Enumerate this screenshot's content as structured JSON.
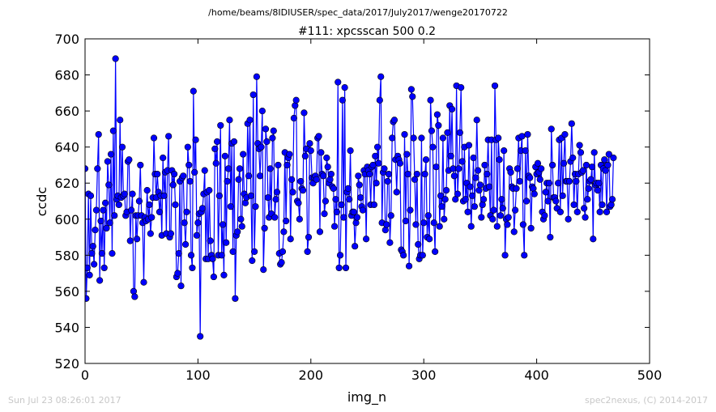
{
  "page": {
    "supertitle": "/home/beams/8IDIUSER/spec_data/2017/July2017/wenge20170722",
    "footer_left": "Sun Jul 23 08:26:01 2017",
    "footer_right": "spec2nexus, (C) 2014-2017"
  },
  "colors": {
    "series": "#0000ff",
    "marker_edge": "#000000",
    "axes": "#000000",
    "footer_text": "#c8c8c8"
  },
  "chart_data": {
    "type": "line",
    "title": "#111: xpcsscan 500 0.2",
    "xlabel": "img_n",
    "ylabel": "ccdc",
    "xlim": [
      0,
      500
    ],
    "ylim": [
      520,
      700
    ],
    "xticks": [
      0,
      100,
      200,
      300,
      400,
      500
    ],
    "yticks": [
      520,
      540,
      560,
      580,
      600,
      620,
      640,
      660,
      680,
      700
    ],
    "grid": false,
    "legend": "none",
    "marker": "circle",
    "series": [
      {
        "values": [
          628,
          556,
          573,
          614,
          569,
          613,
          581,
          585,
          575,
          594,
          605,
          628,
          647,
          566,
          599,
          581,
          605,
          573,
          609,
          595,
          632,
          619,
          598,
          636,
          581,
          649,
          602,
          689,
          611,
          613,
          608,
          655,
          612,
          640,
          613,
          614,
          602,
          604,
          632,
          633,
          588,
          605,
          614,
          560,
          557,
          602,
          589,
          602,
          610,
          630,
          602,
          598,
          565,
          601,
          599,
          616,
          600,
          608,
          592,
          601,
          612,
          645,
          625,
          612,
          625,
          615,
          604,
          613,
          591,
          634,
          613,
          626,
          592,
          627,
          646,
          590,
          592,
          627,
          619,
          625,
          608,
          568,
          570,
          581,
          621,
          563,
          623,
          624,
          598,
          586,
          604,
          640,
          630,
          621,
          580,
          573,
          671,
          626,
          644,
          591,
          598,
          603,
          535,
          604,
          606,
          614,
          627,
          578,
          615,
          578,
          616,
          588,
          580,
          578,
          568,
          639,
          631,
          643,
          580,
          613,
          652,
          580,
          597,
          569,
          635,
          587,
          621,
          628,
          655,
          607,
          642,
          582,
          643,
          556,
          591,
          593,
          622,
          628,
          600,
          596,
          636,
          614,
          609,
          612,
          653,
          624,
          655,
          613,
          577,
          669,
          582,
          607,
          679,
          642,
          639,
          624,
          640,
          660,
          572,
          595,
          650,
          643,
          612,
          601,
          628,
          603,
          645,
          649,
          601,
          611,
          615,
          630,
          581,
          575,
          576,
          582,
          593,
          637,
          599,
          630,
          634,
          636,
          589,
          622,
          615,
          656,
          663,
          666,
          610,
          609,
          600,
          621,
          617,
          616,
          659,
          635,
          639,
          582,
          590,
          642,
          638,
          623,
          620,
          623,
          624,
          622,
          645,
          646,
          593,
          637,
          625,
          624,
          603,
          610,
          634,
          629,
          620,
          622,
          625,
          618,
          617,
          596,
          611,
          604,
          676,
          573,
          580,
          608,
          666,
          601,
          673,
          573,
          615,
          617,
          611,
          638,
          602,
          604,
          604,
          585,
          598,
          601,
          624,
          619,
          612,
          607,
          605,
          627,
          625,
          589,
          629,
          627,
          625,
          608,
          629,
          630,
          608,
          635,
          620,
          640,
          631,
          666,
          679,
          598,
          626,
          628,
          594,
          597,
          621,
          625,
          587,
          602,
          645,
          654,
          655,
          633,
          615,
          635,
          633,
          631,
          583,
          582,
          580,
          647,
          599,
          636,
          625,
          574,
          605,
          672,
          668,
          645,
          622,
          597,
          625,
          586,
          578,
          580,
          645,
          580,
          598,
          625,
          633,
          590,
          602,
          589,
          666,
          649,
          640,
          598,
          582,
          629,
          658,
          652,
          596,
          613,
          607,
          645,
          600,
          611,
          616,
          648,
          627,
          663,
          635,
          661,
          628,
          624,
          611,
          674,
          614,
          628,
          648,
          673,
          632,
          610,
          640,
          611,
          620,
          604,
          641,
          618,
          596,
          613,
          634,
          607,
          623,
          655,
          627,
          616,
          619,
          601,
          608,
          611,
          630,
          617,
          625,
          644,
          618,
          602,
          644,
          600,
          605,
          674,
          644,
          596,
          645,
          633,
          602,
          611,
          606,
          638,
          580,
          600,
          597,
          601,
          628,
          626,
          618,
          617,
          593,
          605,
          617,
          628,
          645,
          621,
          638,
          646,
          597,
          580,
          638,
          610,
          647,
          624,
          623,
          595,
          618,
          617,
          614,
          629,
          625,
          631,
          626,
          622,
          628,
          604,
          600,
          602,
          615,
          620,
          610,
          620,
          590,
          650,
          630,
          612,
          612,
          610,
          606,
          620,
          644,
          604,
          645,
          613,
          631,
          647,
          621,
          621,
          600,
          621,
          632,
          653,
          634,
          608,
          625,
          621,
          604,
          625,
          641,
          637,
          626,
          627,
          606,
          601,
          630,
          611,
          617,
          621,
          622,
          629,
          589,
          637,
          619,
          620,
          616,
          620,
          604,
          630,
          608,
          628,
          633,
          627,
          604,
          630,
          636,
          607,
          608,
          611,
          634
        ]
      }
    ]
  }
}
